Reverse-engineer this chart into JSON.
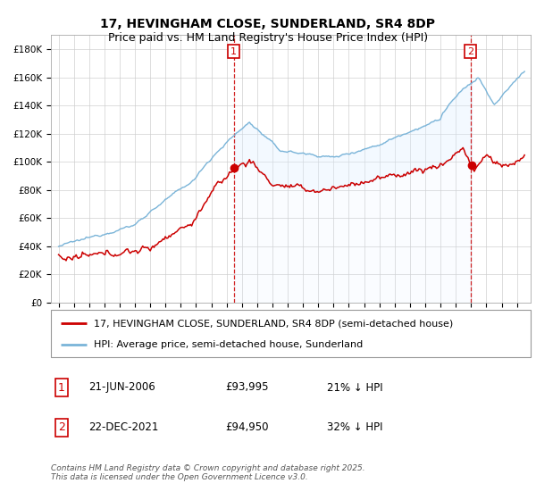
{
  "title": "17, HEVINGHAM CLOSE, SUNDERLAND, SR4 8DP",
  "subtitle": "Price paid vs. HM Land Registry's House Price Index (HPI)",
  "ylim": [
    0,
    190000
  ],
  "yticks": [
    0,
    20000,
    40000,
    60000,
    80000,
    100000,
    120000,
    140000,
    160000,
    180000
  ],
  "ytick_labels": [
    "£0",
    "£20K",
    "£40K",
    "£60K",
    "£80K",
    "£100K",
    "£120K",
    "£140K",
    "£160K",
    "£180K"
  ],
  "hpi_color": "#7ab4d8",
  "price_color": "#cc0000",
  "vline_color": "#cc0000",
  "plot_bg": "#ffffff",
  "shade_color": "#ddeeff",
  "purchase1_date": 2006.47,
  "purchase1_price": 93995,
  "purchase2_date": 2021.97,
  "purchase2_price": 94950,
  "legend_entry1": "17, HEVINGHAM CLOSE, SUNDERLAND, SR4 8DP (semi-detached house)",
  "legend_entry2": "HPI: Average price, semi-detached house, Sunderland",
  "table_row1": [
    "1",
    "21-JUN-2006",
    "£93,995",
    "21% ↓ HPI"
  ],
  "table_row2": [
    "2",
    "22-DEC-2021",
    "£94,950",
    "32% ↓ HPI"
  ],
  "footer": "Contains HM Land Registry data © Crown copyright and database right 2025.\nThis data is licensed under the Open Government Licence v3.0.",
  "title_fontsize": 10,
  "subtitle_fontsize": 9,
  "axis_fontsize": 7.5,
  "legend_fontsize": 8
}
